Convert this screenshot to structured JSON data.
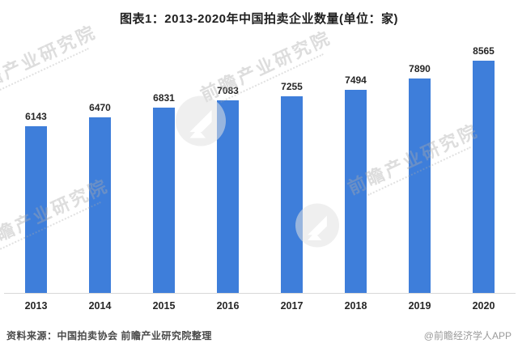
{
  "title": "图表1：2013-2020年中国拍卖企业数量(单位：家)",
  "chart_data": {
    "type": "bar",
    "title": "图表1：2013-2020年中国拍卖企业数量(单位：家)",
    "categories": [
      "2013",
      "2014",
      "2015",
      "2016",
      "2017",
      "2018",
      "2019",
      "2020"
    ],
    "values": [
      6143,
      6470,
      6831,
      7083,
      7255,
      7494,
      7890,
      8565
    ],
    "xlabel": "",
    "ylabel": "",
    "ylim": [
      0,
      9000
    ],
    "unit": "家",
    "grid": false,
    "legend": "none",
    "value_labels_shown": true,
    "bar_color": "#3e7eda",
    "axis_line_color": "#d8d8d8"
  },
  "footer": {
    "source": "资料来源：中国拍卖协会 前瞻产业研究院整理",
    "credit": "@前瞻经济学人APP"
  },
  "watermark": {
    "text": "前瞻产业研究院",
    "logo_icon": "qianzhan-logo-icon",
    "color": "#d9d9d9"
  }
}
